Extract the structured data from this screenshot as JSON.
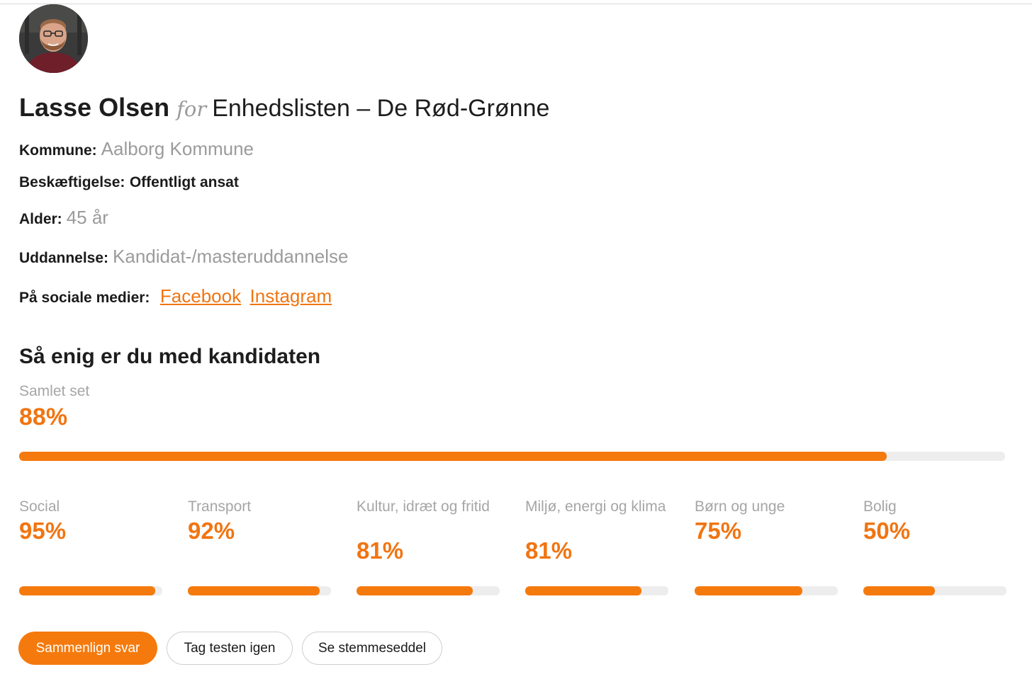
{
  "candidate": {
    "name": "Lasse Olsen",
    "for_word": "for",
    "party": "Enhedslisten – De Rød-Grønne",
    "avatar_icon": "person-photo-icon"
  },
  "info": {
    "kommune_label": "Kommune:",
    "kommune_value": "Aalborg Kommune",
    "beskaeftigelse_label": "Beskæftigelse:",
    "beskaeftigelse_value": "Offentligt ansat",
    "alder_label": "Alder:",
    "alder_value": "45 år",
    "uddannelse_label": "Uddannelse:",
    "uddannelse_value": "Kandidat-/masteruddannelse",
    "social_label": "På sociale medier:",
    "social_links": [
      "Facebook",
      "Instagram"
    ]
  },
  "agreement": {
    "title": "Så enig er du med kandidaten",
    "overall_label": "Samlet set",
    "overall_pct": "88%",
    "overall_value": 88,
    "categories": [
      {
        "label": "Social",
        "pct": "95%",
        "value": 95
      },
      {
        "label": "Transport",
        "pct": "92%",
        "value": 92
      },
      {
        "label": "Kultur, idræt og fritid",
        "pct": "81%",
        "value": 81
      },
      {
        "label": "Miljø, energi og klima",
        "pct": "81%",
        "value": 81
      },
      {
        "label": "Børn og unge",
        "pct": "75%",
        "value": 75
      },
      {
        "label": "Bolig",
        "pct": "50%",
        "value": 50
      }
    ]
  },
  "buttons": {
    "compare": "Sammenlign svar",
    "retake": "Tag testen igen",
    "ballot": "Se stemmeseddel"
  },
  "colors": {
    "accent": "#f57a0d",
    "muted_text": "#9b9b9b",
    "track": "#ededed"
  }
}
